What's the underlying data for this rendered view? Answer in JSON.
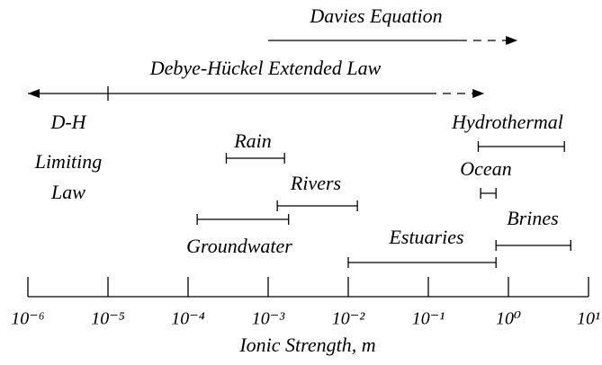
{
  "chart_data": {
    "type": "range",
    "xlabel": "Ionic Strength,  m",
    "xscale": "log",
    "xlim": [
      1e-06,
      10
    ],
    "xticks": [
      {
        "value": 1e-06,
        "label": "10⁻⁶"
      },
      {
        "value": 1e-05,
        "label": "10⁻⁵"
      },
      {
        "value": 0.0001,
        "label": "10⁻⁴"
      },
      {
        "value": 0.001,
        "label": "10⁻³"
      },
      {
        "value": 0.01,
        "label": "10⁻²"
      },
      {
        "value": 0.1,
        "label": "10⁻¹"
      },
      {
        "value": 1,
        "label": "10⁰"
      },
      {
        "value": 10,
        "label": "10¹"
      }
    ],
    "laws": [
      {
        "name": "Davies Equation",
        "values": [
          0.001,
          0.24
        ],
        "dashed_to": 1.3
      },
      {
        "name": "Debye-Hückel Extended Law",
        "values": [
          1e-05,
          0.1
        ],
        "dashed_to": 0.5
      },
      {
        "name": [
          "D-H",
          "Limiting",
          "Law"
        ],
        "values": [
          1e-06,
          1e-05
        ]
      }
    ],
    "ranges": [
      {
        "name": "Rain",
        "values": [
          0.0003,
          0.0016
        ]
      },
      {
        "name": "Rivers",
        "values": [
          0.0013,
          0.013
        ]
      },
      {
        "name": "Groundwater",
        "values": [
          0.00013,
          0.0018
        ]
      },
      {
        "name": "Estuaries",
        "values": [
          0.01,
          0.7
        ]
      },
      {
        "name": "Brines",
        "values": [
          0.7,
          6
        ]
      },
      {
        "name": "Hydrothermal",
        "values": [
          0.42,
          5
        ]
      },
      {
        "name": "Ocean",
        "values": [
          0.45,
          0.7
        ]
      }
    ]
  }
}
